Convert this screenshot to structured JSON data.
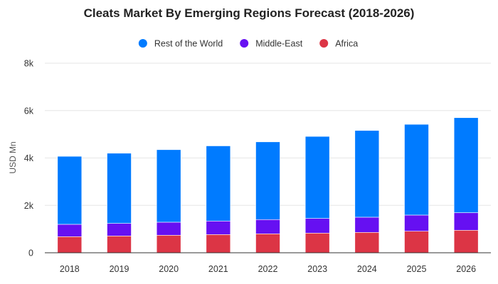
{
  "chart_data": {
    "type": "bar",
    "stacked": true,
    "title": "Cleats Market By Emerging Regions Forecast (2018-2026)",
    "xlabel": "",
    "ylabel": "USD Mn",
    "ylim": [
      0,
      8000
    ],
    "yticks": [
      0,
      2000,
      4000,
      6000,
      8000
    ],
    "ytick_labels": [
      "0",
      "2k",
      "4k",
      "6k",
      "8k"
    ],
    "grid": true,
    "legend_position": "top-center",
    "categories": [
      "2018",
      "2019",
      "2020",
      "2021",
      "2022",
      "2023",
      "2024",
      "2025",
      "2026"
    ],
    "series": [
      {
        "name": "Africa",
        "color": "#dc3545",
        "values": [
          680,
          710,
          740,
          770,
          800,
          830,
          860,
          910,
          950
        ]
      },
      {
        "name": "Middle-East",
        "color": "#6610f2",
        "values": [
          520,
          530,
          550,
          570,
          600,
          620,
          640,
          680,
          740
        ]
      },
      {
        "name": "Rest of the World",
        "color": "#007bff",
        "values": [
          2870,
          2960,
          3060,
          3170,
          3280,
          3460,
          3660,
          3830,
          4010
        ]
      }
    ],
    "legend_order": [
      "Rest of the World",
      "Middle-East",
      "Africa"
    ]
  }
}
